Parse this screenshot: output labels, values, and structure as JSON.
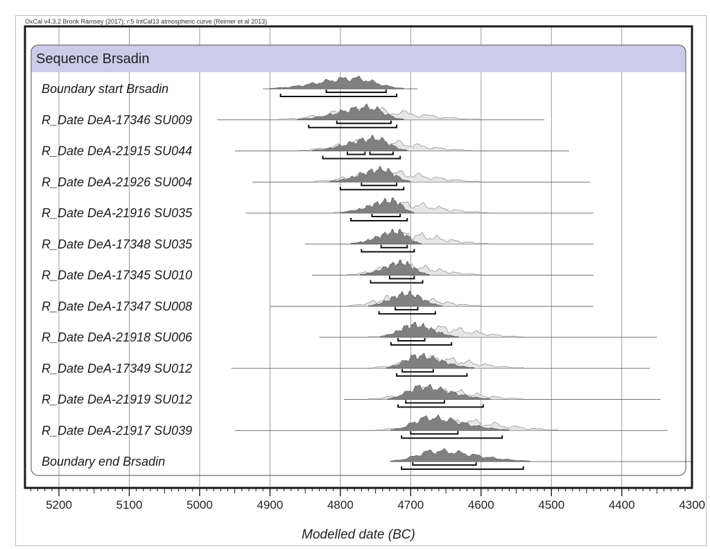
{
  "header_text": "OxCal v4.3.2 Bronk Ramsey (2017); r:5 IntCal13 atmospheric curve (Reimer et al 2013)",
  "group_title": "Sequence Brsadin",
  "colors": {
    "header_band": "#ccccea",
    "posterior": "#808080",
    "prior": "#e6e6e6",
    "frame": "#1a1a1a",
    "grid": "#9a9a9a"
  },
  "chart_data": {
    "type": "multiplot",
    "xlabel": "Modelled date (BC)",
    "xlim": [
      5250,
      4300
    ],
    "xticks": [
      5200,
      5100,
      5000,
      4900,
      4800,
      4700,
      4600,
      4500,
      4400,
      4300
    ],
    "grid": true,
    "rows": [
      {
        "label": "Boundary start Brsadin",
        "kind": "boundary",
        "line": [
          4910,
          4690
        ],
        "peak": 4780,
        "prior": null,
        "range_68": [
          4820,
          4735
        ],
        "range_95": [
          4885,
          4720
        ]
      },
      {
        "label": "R_Date DeA-17346 SU009",
        "kind": "date",
        "line": [
          4975,
          4510
        ],
        "peak": 4760,
        "prior": [
          4890,
          4600
        ],
        "range_68": [
          4805,
          4728
        ],
        "range_95": [
          4845,
          4720
        ]
      },
      {
        "label": "R_Date DeA-21915 SU044",
        "kind": "date",
        "line": [
          4950,
          4475
        ],
        "peak": 4750,
        "prior": [
          4860,
          4610
        ],
        "range_68": [
          4790,
          4765,
          4758,
          4725
        ],
        "range_95": [
          4825,
          4715
        ]
      },
      {
        "label": "R_Date DeA-21926 SU004",
        "kind": "date",
        "line": [
          4925,
          4445
        ],
        "peak": 4740,
        "prior": [
          4840,
          4600
        ],
        "range_68": [
          4770,
          4720
        ],
        "range_95": [
          4800,
          4710
        ]
      },
      {
        "label": "R_Date DeA-21916 SU035",
        "kind": "date",
        "line": [
          4935,
          4440
        ],
        "peak": 4725,
        "prior": [
          4810,
          4590
        ],
        "range_68": [
          4755,
          4715
        ],
        "range_95": [
          4785,
          4705
        ]
      },
      {
        "label": "R_Date DeA-17348 SU035",
        "kind": "date",
        "line": [
          4850,
          4440
        ],
        "peak": 4718,
        "prior": [
          4790,
          4590
        ],
        "range_68": [
          4742,
          4705
        ],
        "range_95": [
          4770,
          4695
        ]
      },
      {
        "label": "R_Date DeA-17345 SU010",
        "kind": "date",
        "line": [
          4840,
          4440
        ],
        "peak": 4712,
        "prior": [
          4790,
          4600
        ],
        "range_68": [
          4730,
          4695
        ],
        "range_95": [
          4757,
          4683
        ]
      },
      {
        "label": "R_Date DeA-17347 SU008",
        "kind": "date",
        "line": [
          4900,
          4440
        ],
        "peak": 4705,
        "prior": [
          4790,
          4600
        ],
        "range_68": [
          4722,
          4690
        ],
        "range_95": [
          4745,
          4665
        ]
      },
      {
        "label": "R_Date DeA-21918 SU006",
        "kind": "date",
        "line": [
          4830,
          4350
        ],
        "peak": 4695,
        "prior": [
          4760,
          4540
        ],
        "range_68": [
          4718,
          4680
        ],
        "range_95": [
          4728,
          4642
        ]
      },
      {
        "label": "R_Date DeA-17349 SU012",
        "kind": "date",
        "line": [
          4955,
          4360
        ],
        "peak": 4690,
        "prior": [
          4760,
          4540
        ],
        "range_68": [
          4712,
          4668
        ],
        "range_95": [
          4720,
          4620
        ]
      },
      {
        "label": "R_Date DeA-21919 SU012",
        "kind": "date",
        "line": [
          4795,
          4345
        ],
        "peak": 4685,
        "prior": [
          4760,
          4540
        ],
        "range_68": [
          4707,
          4652
        ],
        "range_95": [
          4718,
          4597
        ]
      },
      {
        "label": "R_Date DeA-21917 SU039",
        "kind": "date",
        "line": [
          4950,
          4335
        ],
        "peak": 4675,
        "prior": [
          4750,
          4490
        ],
        "range_68": [
          4700,
          4633
        ],
        "range_95": [
          4713,
          4570
        ]
      },
      {
        "label": "Boundary end Brsadin",
        "kind": "boundary",
        "line": [
          4730,
          4300
        ],
        "peak": 4665,
        "prior": null,
        "range_68": [
          4697,
          4607
        ],
        "range_95": [
          4713,
          4540
        ]
      }
    ]
  }
}
